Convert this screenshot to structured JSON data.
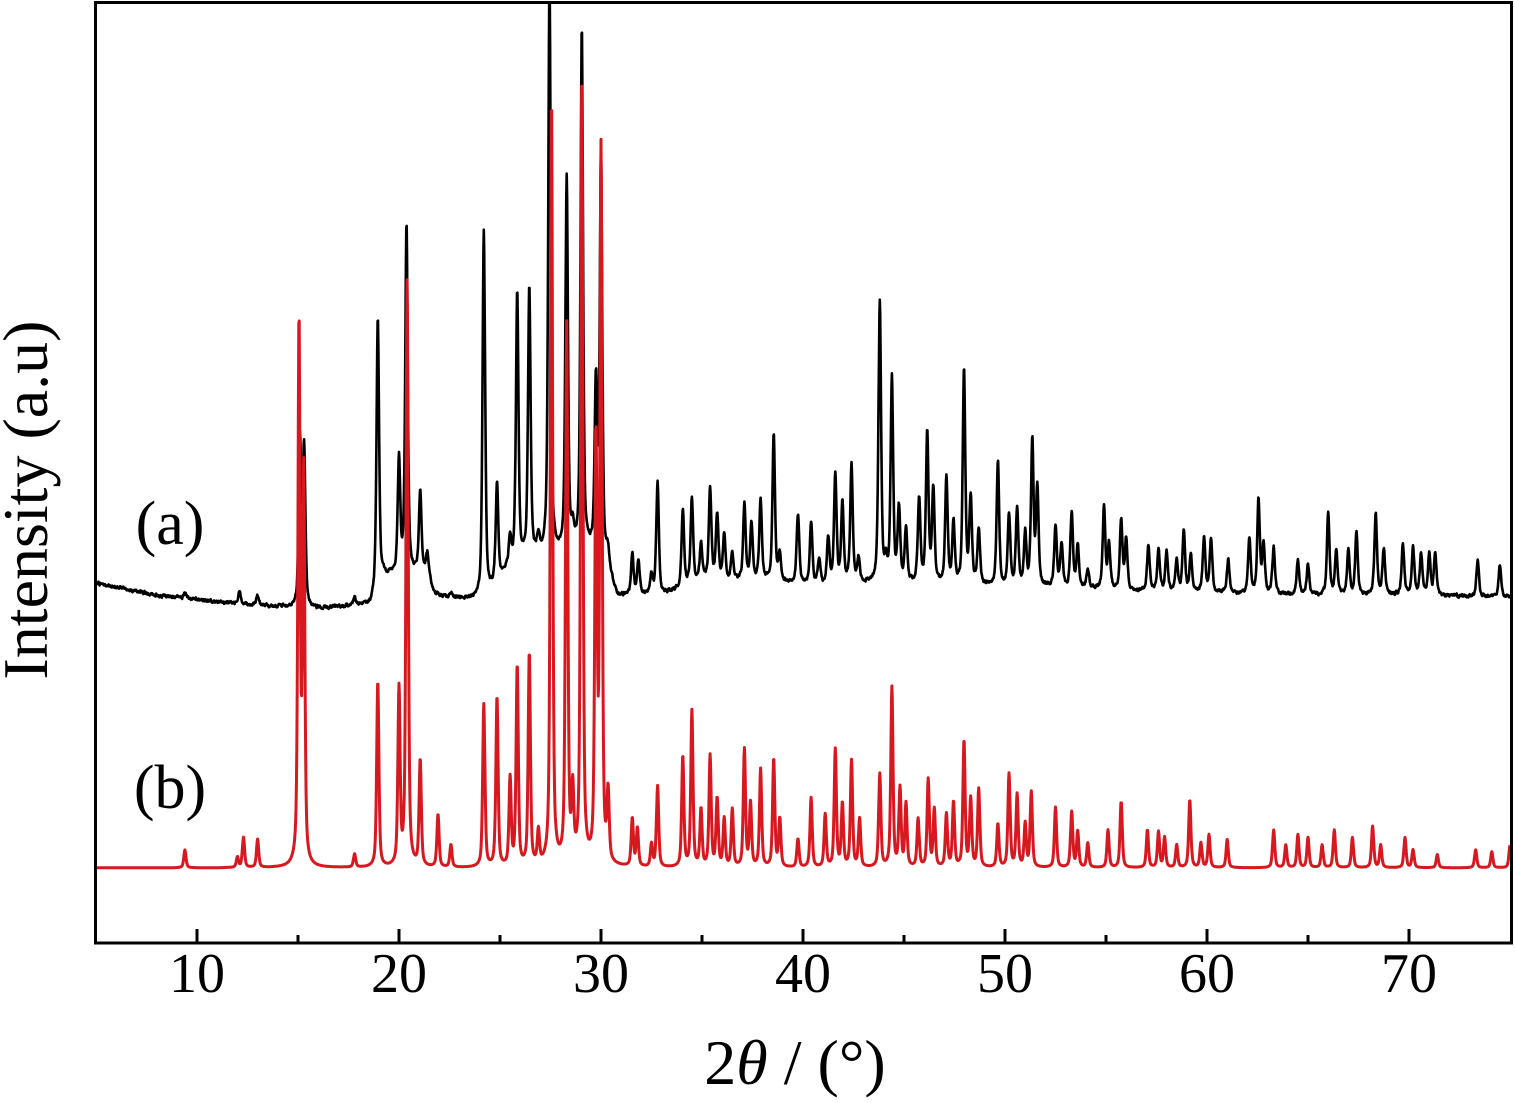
{
  "chart_data": {
    "type": "line",
    "xlabel": "2θ / (°)",
    "ylabel": "Intensity (a.u)",
    "xlim": [
      5,
      75
    ],
    "ylim": [
      0,
      100
    ],
    "xticks": [
      10,
      20,
      30,
      40,
      50,
      60,
      70
    ],
    "grid": false,
    "legend": "none",
    "series": [
      {
        "name": "(a)",
        "color": "#000000",
        "baseline": [
          [
            5,
            38.3
          ],
          [
            8,
            37.0
          ],
          [
            10,
            36.5
          ],
          [
            13,
            35.9
          ],
          [
            16,
            35.6
          ],
          [
            18.6,
            36.0
          ],
          [
            19.2,
            39.0
          ],
          [
            21.4,
            39.5
          ],
          [
            21.8,
            36.8
          ],
          [
            24,
            36.5
          ],
          [
            24.6,
            37.5
          ],
          [
            25.3,
            39.5
          ],
          [
            26.5,
            41.0
          ],
          [
            29.5,
            41.5
          ],
          [
            30.3,
            40.0
          ],
          [
            30.8,
            36.8
          ],
          [
            33,
            37.0
          ],
          [
            35,
            38.5
          ],
          [
            38,
            38.5
          ],
          [
            41,
            38.0
          ],
          [
            44,
            38.3
          ],
          [
            48,
            38.0
          ],
          [
            52,
            37.8
          ],
          [
            56,
            37.5
          ],
          [
            60,
            37.3
          ],
          [
            65,
            37.0
          ],
          [
            70,
            37.0
          ],
          [
            75,
            36.8
          ]
        ],
        "peaks": [
          [
            9.4,
            37.3
          ],
          [
            12.1,
            37.4
          ],
          [
            13.0,
            37.0
          ],
          [
            15.1,
            53.2
          ],
          [
            15.3,
            52.4
          ],
          [
            17.8,
            36.6
          ],
          [
            18.95,
            66.5
          ],
          [
            20.0,
            51.2
          ],
          [
            20.37,
            76.4
          ],
          [
            21.05,
            47.9
          ],
          [
            21.4,
            41.3
          ],
          [
            21.9,
            37.2
          ],
          [
            22.6,
            37.1
          ],
          [
            24.2,
            75.6
          ],
          [
            24.85,
            48.7
          ],
          [
            25.5,
            42.9
          ],
          [
            25.85,
            68.9
          ],
          [
            26.45,
            69.5
          ],
          [
            26.9,
            42.9
          ],
          [
            27.45,
            102.4
          ],
          [
            28.3,
            81.0
          ],
          [
            28.6,
            43.4
          ],
          [
            29.05,
            96.9
          ],
          [
            29.75,
            58.8
          ],
          [
            30.0,
            83.5
          ],
          [
            30.35,
            41.3
          ],
          [
            31.55,
            41.3
          ],
          [
            31.85,
            40.7
          ],
          [
            32.5,
            39.1
          ],
          [
            32.8,
            48.9
          ],
          [
            34.05,
            46.1
          ],
          [
            34.5,
            47.3
          ],
          [
            34.95,
            42.3
          ],
          [
            35.4,
            48.4
          ],
          [
            35.75,
            45.5
          ],
          [
            36.1,
            43.4
          ],
          [
            36.5,
            41.3
          ],
          [
            37.1,
            46.6
          ],
          [
            37.45,
            44.5
          ],
          [
            37.9,
            47.1
          ],
          [
            38.55,
            54.0
          ],
          [
            38.85,
            41.3
          ],
          [
            39.75,
            45.5
          ],
          [
            40.4,
            44.7
          ],
          [
            40.8,
            40.7
          ],
          [
            41.25,
            42.9
          ],
          [
            41.6,
            49.8
          ],
          [
            41.95,
            46.6
          ],
          [
            42.4,
            50.7
          ],
          [
            42.75,
            40.7
          ],
          [
            43.8,
            68.1
          ],
          [
            44.1,
            40.2
          ],
          [
            44.4,
            59.9
          ],
          [
            44.75,
            46.1
          ],
          [
            45.1,
            43.9
          ],
          [
            45.75,
            47.1
          ],
          [
            46.15,
            54.0
          ],
          [
            46.45,
            48.2
          ],
          [
            47.1,
            49.3
          ],
          [
            47.45,
            44.5
          ],
          [
            47.97,
            61.0
          ],
          [
            48.3,
            47.1
          ],
          [
            48.7,
            43.9
          ],
          [
            49.65,
            51.2
          ],
          [
            50.2,
            45.5
          ],
          [
            50.6,
            46.1
          ],
          [
            51.0,
            43.4
          ],
          [
            51.35,
            53.2
          ],
          [
            51.6,
            48.2
          ],
          [
            52.5,
            44.3
          ],
          [
            52.8,
            42.3
          ],
          [
            53.3,
            45.7
          ],
          [
            53.6,
            42.3
          ],
          [
            54.1,
            39.7
          ],
          [
            54.9,
            46.3
          ],
          [
            55.15,
            42.3
          ],
          [
            55.75,
            44.8
          ],
          [
            56.0,
            42.9
          ],
          [
            57.1,
            42.3
          ],
          [
            57.6,
            41.8
          ],
          [
            58.0,
            41.6
          ],
          [
            58.5,
            40.5
          ],
          [
            58.85,
            43.9
          ],
          [
            59.2,
            41.3
          ],
          [
            59.85,
            43.1
          ],
          [
            60.2,
            42.9
          ],
          [
            61.05,
            40.7
          ],
          [
            62.1,
            42.9
          ],
          [
            62.55,
            47.1
          ],
          [
            62.8,
            42.3
          ],
          [
            63.3,
            42.0
          ],
          [
            64.5,
            40.7
          ],
          [
            65.0,
            40.2
          ],
          [
            66.0,
            45.9
          ],
          [
            66.4,
            41.8
          ],
          [
            67.0,
            42.0
          ],
          [
            67.4,
            43.6
          ],
          [
            68.35,
            45.7
          ],
          [
            68.75,
            41.8
          ],
          [
            69.7,
            42.3
          ],
          [
            70.2,
            42.0
          ],
          [
            70.6,
            41.3
          ],
          [
            71.0,
            41.3
          ],
          [
            71.3,
            41.3
          ],
          [
            73.4,
            40.7
          ],
          [
            74.5,
            40.2
          ]
        ]
      },
      {
        "name": "(b)",
        "color": "#d7191f",
        "baseline": [
          [
            5,
            8.0
          ],
          [
            75,
            8.0
          ]
        ],
        "peaks": [
          [
            9.4,
            9.9
          ],
          [
            12.0,
            9.1
          ],
          [
            12.3,
            11.2
          ],
          [
            13.0,
            11.0
          ],
          [
            15.05,
            65.5
          ],
          [
            15.28,
            49.3
          ],
          [
            17.8,
            9.4
          ],
          [
            18.95,
            27.8
          ],
          [
            20.0,
            26.7
          ],
          [
            20.4,
            70.2
          ],
          [
            21.05,
            19.3
          ],
          [
            21.93,
            13.6
          ],
          [
            22.57,
            10.4
          ],
          [
            24.2,
            25.3
          ],
          [
            24.85,
            26.1
          ],
          [
            25.5,
            17.3
          ],
          [
            25.85,
            29.3
          ],
          [
            26.45,
            30.6
          ],
          [
            26.9,
            11.5
          ],
          [
            27.55,
            89.7
          ],
          [
            28.3,
            65.2
          ],
          [
            28.6,
            15.2
          ],
          [
            29.05,
            92.0
          ],
          [
            29.75,
            52.4
          ],
          [
            30.0,
            83.5
          ],
          [
            30.35,
            15.2
          ],
          [
            31.55,
            13.1
          ],
          [
            31.8,
            12.0
          ],
          [
            32.5,
            10.4
          ],
          [
            32.8,
            16.6
          ],
          [
            34.05,
            19.8
          ],
          [
            34.5,
            24.6
          ],
          [
            34.95,
            14.1
          ],
          [
            35.4,
            19.8
          ],
          [
            35.75,
            15.2
          ],
          [
            36.1,
            13.1
          ],
          [
            36.5,
            14.1
          ],
          [
            37.1,
            20.5
          ],
          [
            37.4,
            14.7
          ],
          [
            37.9,
            18.4
          ],
          [
            38.55,
            19.5
          ],
          [
            38.85,
            13.1
          ],
          [
            39.75,
            11.0
          ],
          [
            40.4,
            15.4
          ],
          [
            41.1,
            13.6
          ],
          [
            41.6,
            20.5
          ],
          [
            41.95,
            14.7
          ],
          [
            42.4,
            19.3
          ],
          [
            42.8,
            13.1
          ],
          [
            43.8,
            17.9
          ],
          [
            44.4,
            27.1
          ],
          [
            44.8,
            16.3
          ],
          [
            45.1,
            14.7
          ],
          [
            45.7,
            13.1
          ],
          [
            46.2,
            17.3
          ],
          [
            46.5,
            14.1
          ],
          [
            47.1,
            13.6
          ],
          [
            47.45,
            14.9
          ],
          [
            47.97,
            21.4
          ],
          [
            48.3,
            15.2
          ],
          [
            48.7,
            16.3
          ],
          [
            49.65,
            12.6
          ],
          [
            50.2,
            17.9
          ],
          [
            50.6,
            15.7
          ],
          [
            51.0,
            12.6
          ],
          [
            51.3,
            16.0
          ],
          [
            52.5,
            14.4
          ],
          [
            53.3,
            13.9
          ],
          [
            53.6,
            11.8
          ],
          [
            54.1,
            10.6
          ],
          [
            55.1,
            12.0
          ],
          [
            55.75,
            15.0
          ],
          [
            57.05,
            12.0
          ],
          [
            57.6,
            11.8
          ],
          [
            57.9,
            11.2
          ],
          [
            58.5,
            10.4
          ],
          [
            59.15,
            15.2
          ],
          [
            59.7,
            10.6
          ],
          [
            60.1,
            11.5
          ],
          [
            61.0,
            11.0
          ],
          [
            63.3,
            12.0
          ],
          [
            63.9,
            10.4
          ],
          [
            64.5,
            11.5
          ],
          [
            65.0,
            11.2
          ],
          [
            65.7,
            10.4
          ],
          [
            66.3,
            12.0
          ],
          [
            67.2,
            11.2
          ],
          [
            68.2,
            12.4
          ],
          [
            68.6,
            10.4
          ],
          [
            69.8,
            11.2
          ],
          [
            70.2,
            9.9
          ],
          [
            71.4,
            9.4
          ],
          [
            73.3,
            9.9
          ],
          [
            74.1,
            9.7
          ],
          [
            75.0,
            10.4
          ]
        ]
      }
    ]
  }
}
